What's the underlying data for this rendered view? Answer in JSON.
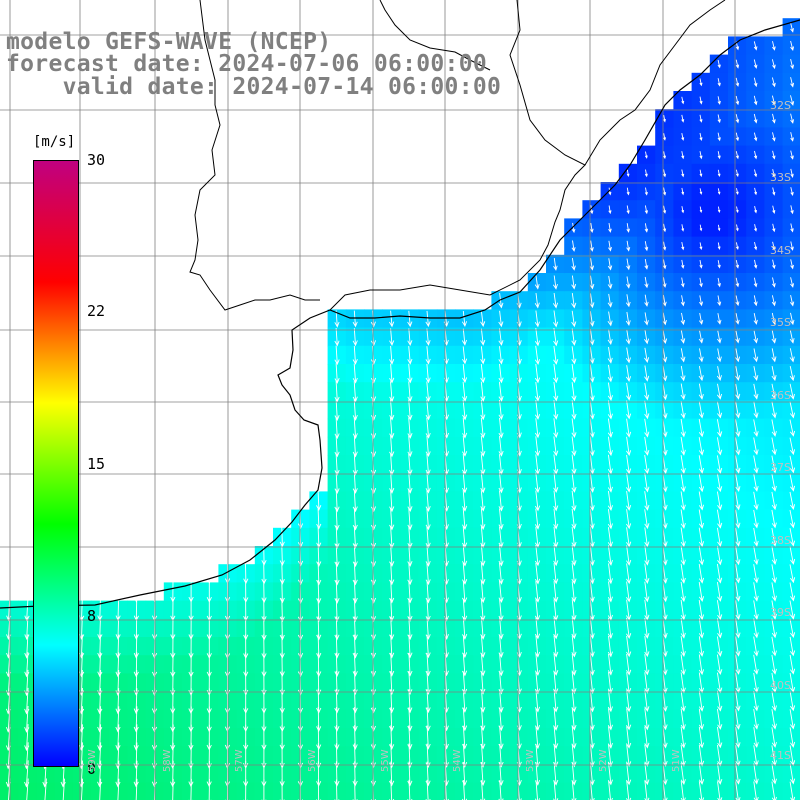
{
  "titles": {
    "line1": "modelo GEFS-WAVE (NCEP)",
    "line2": "forecast date: 2024-07-06 06:00:00",
    "line3": "    valid date: 2024-07-14 06:00:00"
  },
  "colorbar": {
    "unit": "[m/s]",
    "ticks": [
      "30",
      "22",
      "15",
      "8",
      "0"
    ],
    "tick_values": [
      30,
      22,
      15,
      8,
      0
    ],
    "range": [
      0,
      30
    ],
    "colors": [
      "#0000ff",
      "#00ffff",
      "#00ff00",
      "#ffff00",
      "#ff0000",
      "#c00080"
    ]
  },
  "map": {
    "variable": "wind speed",
    "lat_labels": [
      "32S",
      "33S",
      "34S",
      "35S",
      "36S",
      "37S",
      "38S",
      "39S",
      "40S",
      "41S"
    ],
    "lon_labels": [
      "59W",
      "58W",
      "57W",
      "56W",
      "55W",
      "54W",
      "53W",
      "52W",
      "51W"
    ],
    "wind_direction": "toward south / south-east",
    "land_color": "#ffffff",
    "coastline_color": "#000000",
    "grid_color": "#808080"
  }
}
